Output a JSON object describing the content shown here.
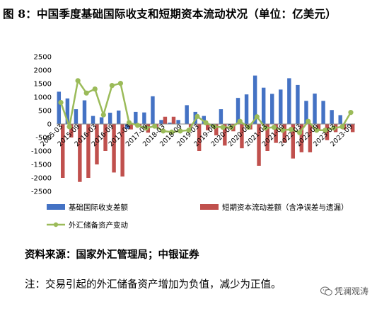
{
  "title": "图 8：中国季度基础国际收支和短期资本流动状况（单位：亿美元）",
  "source": "资料来源：国家外汇管理局；中银证券",
  "note": "注：交易引起的外汇储备资产增加为负值，减少为正值。",
  "watermark": "凭澜观涛",
  "watermark_icon": "wechat-icon",
  "colors": {
    "bar1": "#4472c4",
    "bar2": "#c0504d",
    "line": "#9bbb59"
  },
  "chart_data": {
    "type": "bar",
    "ylim": [
      -2500,
      2500
    ],
    "yticks": [
      2500,
      2000,
      1500,
      1000,
      500,
      0,
      -500,
      -1000,
      -1500,
      -2000,
      -2500
    ],
    "xticks": [
      "2015-03",
      "2015-09",
      "2016-03",
      "2016-09",
      "2017-03",
      "2017-09",
      "2018-03",
      "2018-09",
      "2019-03",
      "2019-09",
      "2020-03",
      "2020-09",
      "2021-03",
      "2021-09",
      "2022-03",
      "2022-09",
      "2023-03",
      "2023-09"
    ],
    "legend_placement": "bottom",
    "grid": false,
    "series": [
      {
        "name": "基础国际收支差额",
        "type": "bar",
        "values": [
          1200,
          950,
          550,
          880,
          300,
          250,
          420,
          500,
          -180,
          450,
          430,
          1030,
          150,
          50,
          150,
          700,
          450,
          300,
          -100,
          550,
          -30,
          970,
          1100,
          1800,
          1350,
          1120,
          1280,
          1700,
          1450,
          860,
          1130,
          860,
          520,
          330,
          -50
        ]
      },
      {
        "name": "短期资本流动差额（含净误差与遗漏）",
        "type": "bar",
        "values": [
          -2000,
          -500,
          -2150,
          -2000,
          -1500,
          -1000,
          -1800,
          -1950,
          -200,
          -70,
          -320,
          -160,
          270,
          270,
          0,
          -120,
          -1000,
          -230,
          -420,
          -800,
          -270,
          -900,
          -200,
          -1550,
          -1000,
          -700,
          -700,
          -1280,
          -1050,
          -1050,
          -200,
          -600,
          -300,
          -200,
          -300
        ]
      },
      {
        "name": "外汇储备资产变动",
        "type": "line",
        "values": [
          800,
          -100,
          1610,
          1150,
          1300,
          340,
          1430,
          1510,
          50,
          -50,
          -150,
          -80,
          -260,
          -300,
          -260,
          -230,
          280,
          50,
          -100,
          -120,
          -130,
          100,
          -120,
          270,
          -150,
          -120,
          -230,
          -200,
          -320,
          100,
          -230,
          -230,
          -150,
          -100,
          430
        ]
      }
    ]
  }
}
